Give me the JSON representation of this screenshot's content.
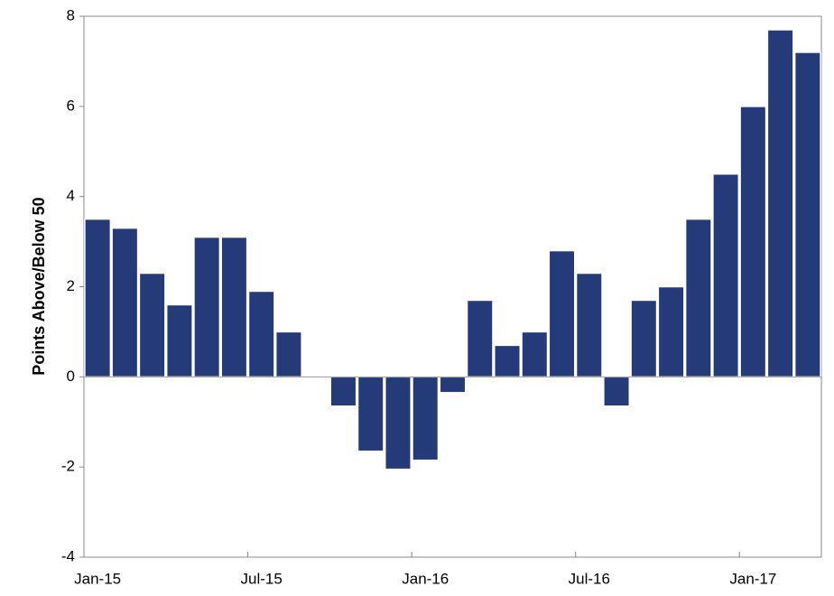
{
  "chart_data": {
    "type": "bar",
    "y_label": "Points Above/Below 50",
    "categories": [
      "Jan-15",
      null,
      null,
      null,
      null,
      null,
      "Jul-15",
      null,
      null,
      null,
      null,
      null,
      "Jan-16",
      null,
      null,
      null,
      null,
      null,
      "Jul-16",
      null,
      null,
      null,
      null,
      null,
      "Jan-17",
      null,
      null
    ],
    "values": [
      3.5,
      3.3,
      2.3,
      1.6,
      3.1,
      3.1,
      1.9,
      1.0,
      0,
      -0.65,
      -1.65,
      -2.05,
      -1.85,
      -0.35,
      1.7,
      0.7,
      1.0,
      2.8,
      2.3,
      -0.65,
      1.7,
      2.0,
      3.5,
      4.5,
      6.0,
      7.7,
      7.2
    ],
    "color": "#253a78",
    "ylim": [
      -4,
      8
    ],
    "yticks": [
      -4,
      -2,
      0,
      2,
      4,
      6,
      8
    ],
    "grid": false
  }
}
